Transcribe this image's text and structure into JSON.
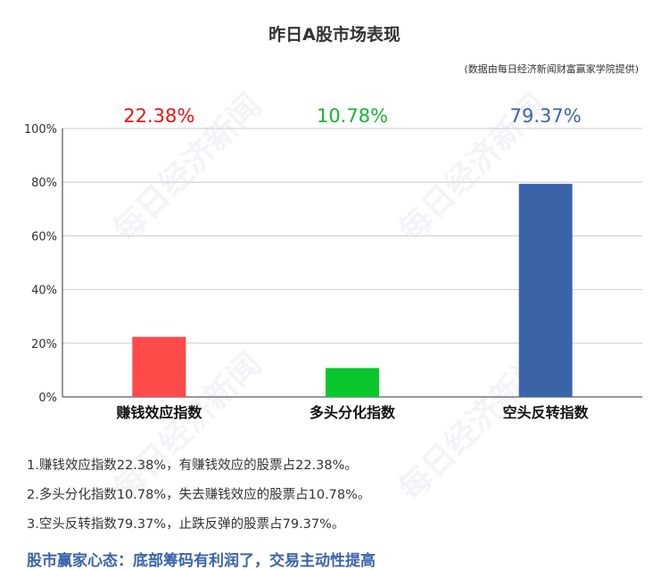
{
  "header": {
    "title": "昨日A股市场表现",
    "source": "(数据由每日经济新闻财富赢家学院提供)"
  },
  "watermark": "每日经济新闻",
  "chart_data": {
    "type": "bar",
    "categories": [
      "赚钱效应指数",
      "多头分化指数",
      "空头反转指数"
    ],
    "values": [
      22.38,
      10.78,
      79.37
    ],
    "value_labels": [
      "22.38%",
      "10.78%",
      "79.37%"
    ],
    "colors": [
      "#ff4a4a",
      "#0ac72e",
      "#3b64a8"
    ],
    "label_colors": [
      "#ee1111",
      "#16b530",
      "#3b64a8"
    ],
    "ylim": [
      0,
      100
    ],
    "yticks": [
      0,
      20,
      40,
      60,
      80,
      100
    ],
    "ytick_labels": [
      "0%",
      "20%",
      "40%",
      "60%",
      "80%",
      "100%"
    ],
    "grid": true,
    "title": "昨日A股市场表现",
    "xlabel": "",
    "ylabel": ""
  },
  "notes": [
    "1.赚钱效应指数22.38%，有赚钱效应的股票占22.38%。",
    "2.多头分化指数10.78%，失去赚钱效应的股票占10.78%。",
    "3.空头反转指数79.37%，止跌反弹的股票占79.37%。"
  ],
  "summary": "股市赢家心态：底部筹码有利润了，交易主动性提高"
}
